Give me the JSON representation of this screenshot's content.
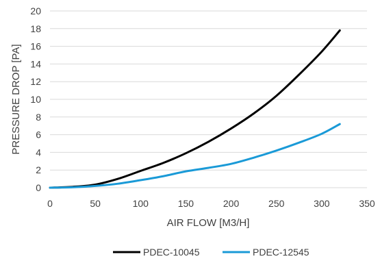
{
  "chart_data": {
    "type": "line",
    "title": "",
    "xlabel": "AIR FLOW [M3/H]",
    "ylabel": "PRESSURE DROP [PA]",
    "xlim": [
      0,
      350
    ],
    "ylim": [
      0,
      20
    ],
    "xticks": [
      0,
      50,
      100,
      150,
      200,
      250,
      300,
      350
    ],
    "yticks": [
      0,
      2,
      4,
      6,
      8,
      10,
      12,
      14,
      16,
      18,
      20
    ],
    "grid": "horizontal",
    "legend_position": "bottom",
    "series": [
      {
        "name": "PDEC-10045",
        "color": "#000000",
        "x": [
          0,
          25,
          50,
          75,
          100,
          125,
          150,
          175,
          200,
          225,
          250,
          275,
          300,
          320
        ],
        "y": [
          0,
          0.1,
          0.35,
          1.0,
          1.9,
          2.8,
          3.9,
          5.2,
          6.7,
          8.4,
          10.4,
          12.8,
          15.4,
          17.8
        ]
      },
      {
        "name": "PDEC-12545",
        "color": "#1a9ad7",
        "x": [
          0,
          25,
          50,
          75,
          100,
          125,
          150,
          175,
          200,
          225,
          250,
          275,
          300,
          320
        ],
        "y": [
          0,
          0.05,
          0.2,
          0.45,
          0.85,
          1.3,
          1.85,
          2.25,
          2.7,
          3.4,
          4.2,
          5.1,
          6.1,
          7.2
        ]
      }
    ]
  }
}
